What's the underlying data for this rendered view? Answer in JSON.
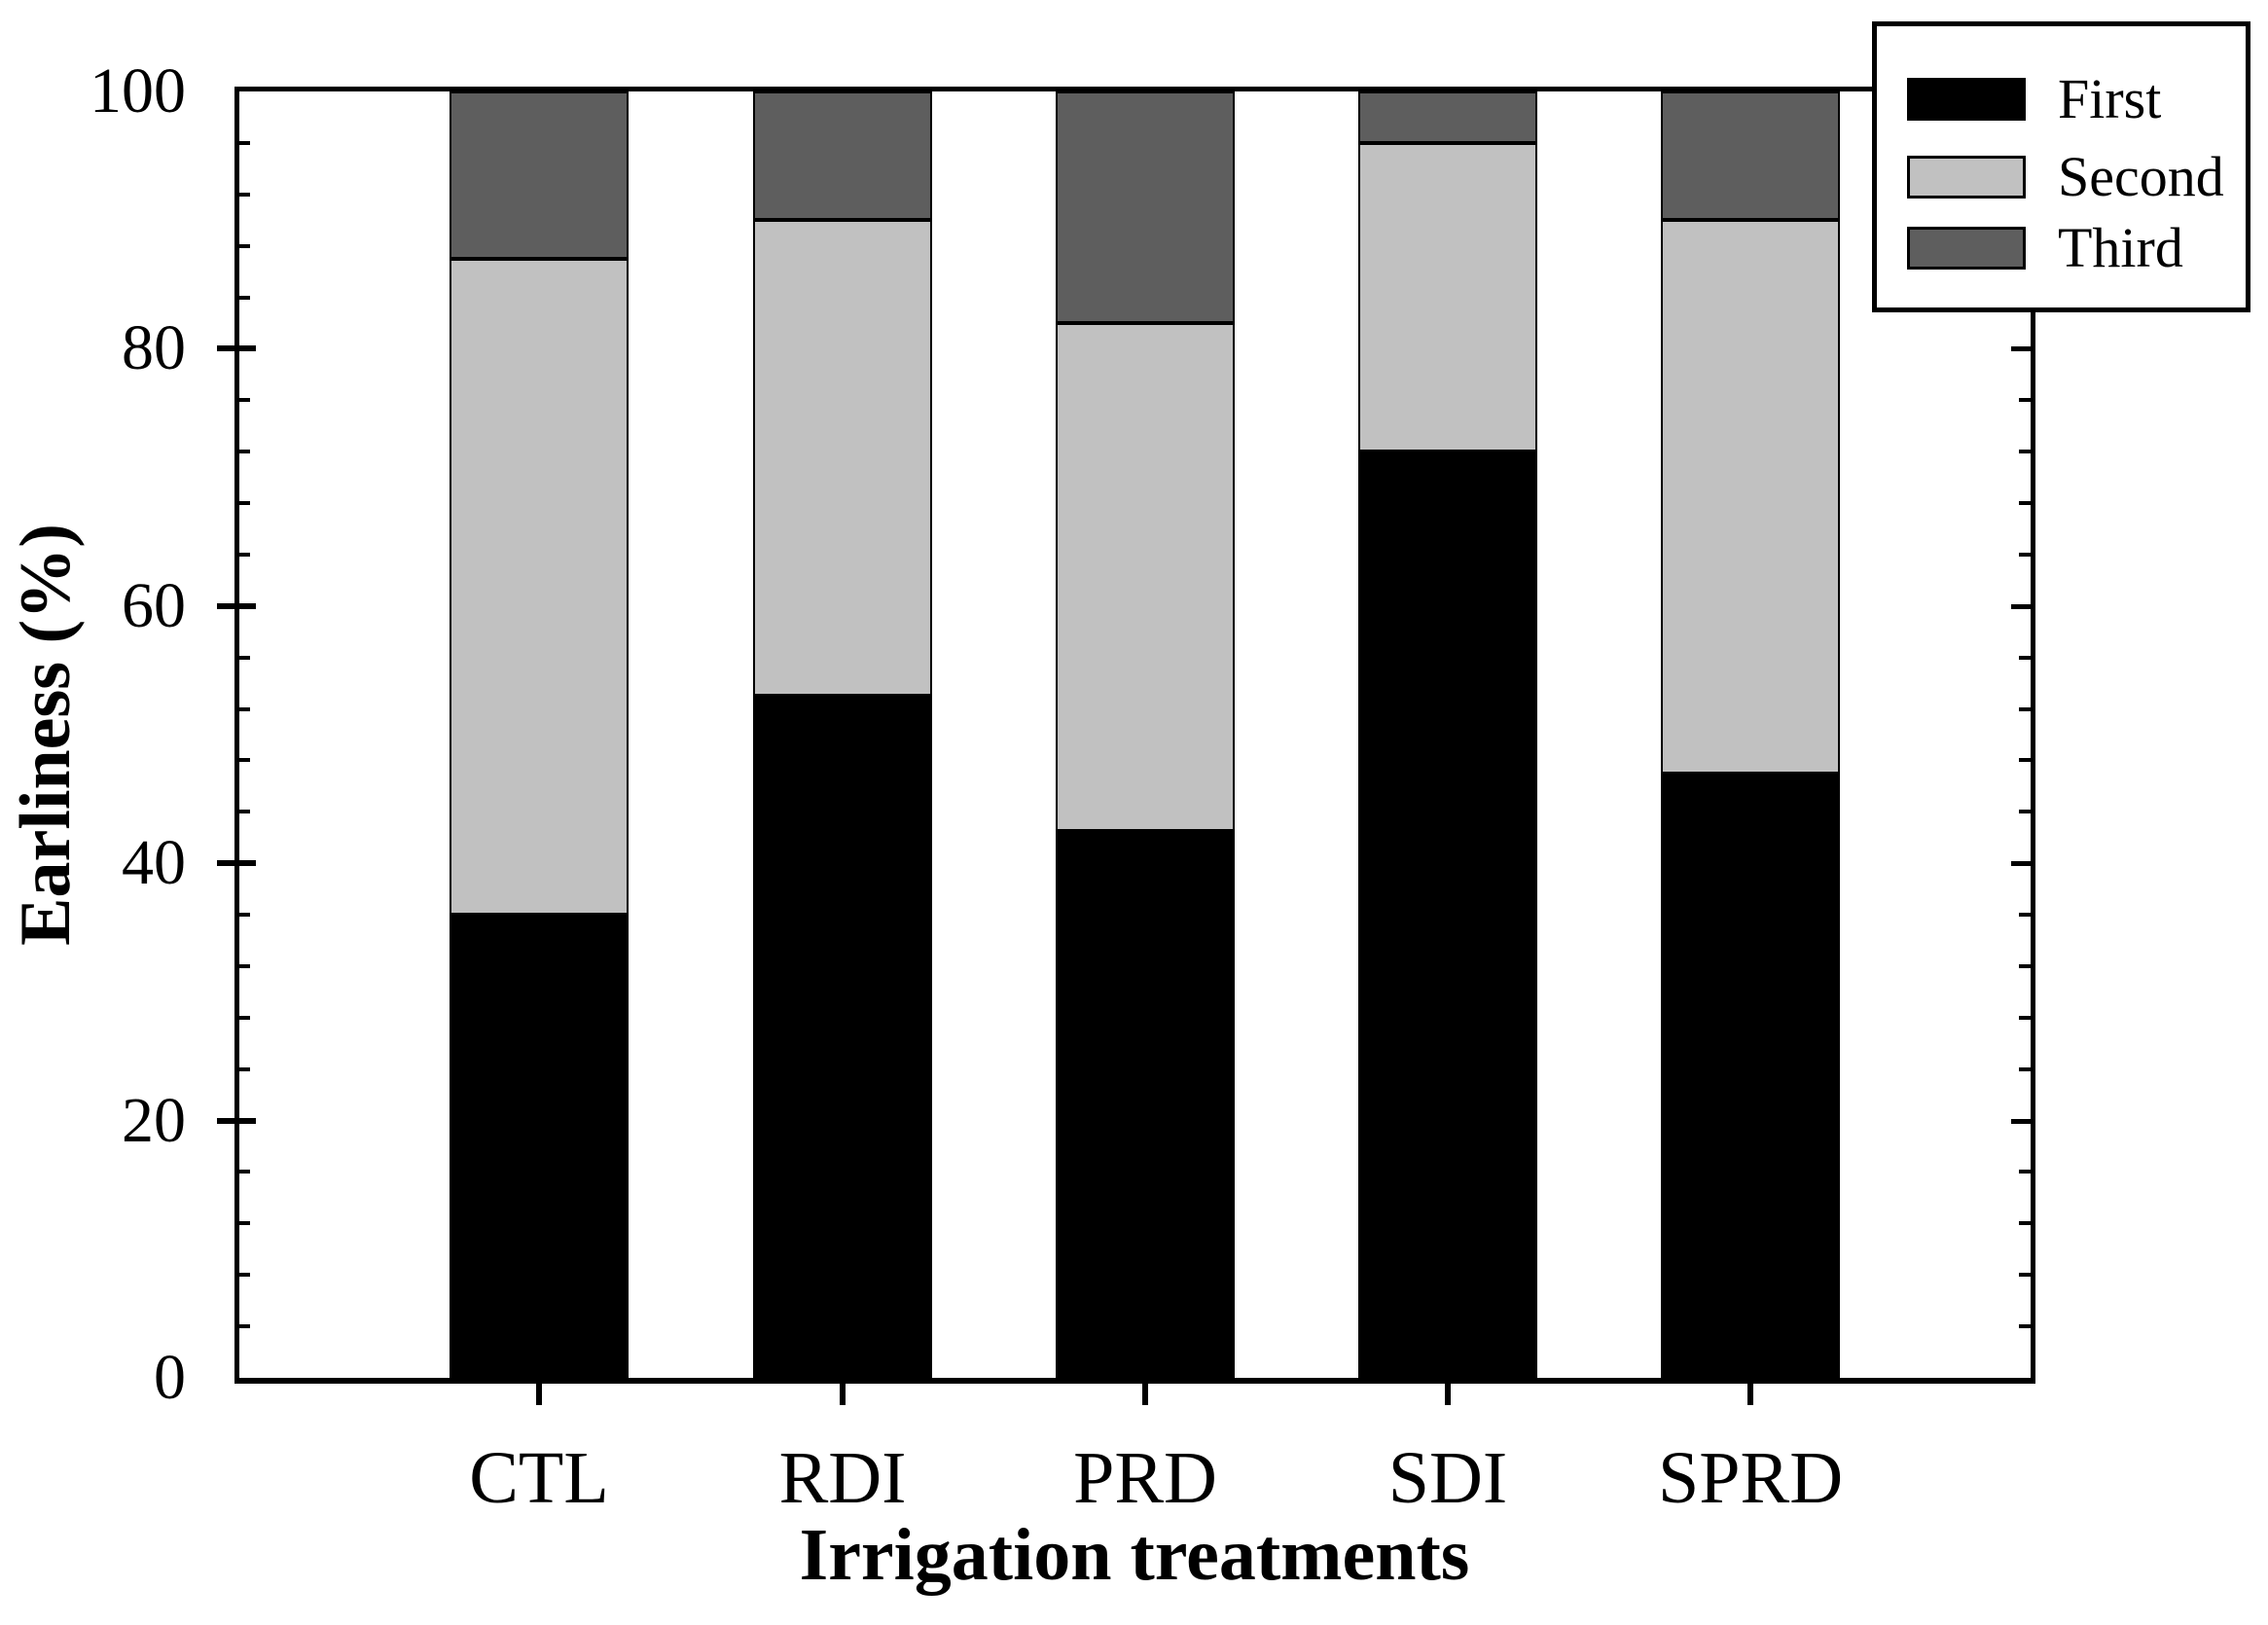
{
  "chart_data": {
    "type": "bar",
    "stacked": true,
    "categories": [
      "CTL",
      "RDI",
      "PRD",
      "SDI",
      "SPRD"
    ],
    "series": [
      {
        "name": "First",
        "color": "#000000",
        "values": [
          36,
          53,
          42.5,
          72,
          47
        ]
      },
      {
        "name": "Second",
        "color": "#c1c1c1",
        "values": [
          51,
          37,
          39.5,
          24,
          43
        ]
      },
      {
        "name": "Third",
        "color": "#5e5e5e",
        "values": [
          13,
          10,
          18,
          4,
          10
        ]
      }
    ],
    "xlabel": "Irrigation treatments",
    "ylabel": "Earliness (%)",
    "ylim": [
      0,
      100
    ],
    "yticks": [
      0,
      20,
      40,
      60,
      80,
      100
    ],
    "minor_tick_step": 4,
    "grid": false,
    "legend_position": "top-right",
    "axis_color": "#000000",
    "background_color": "#ffffff"
  }
}
